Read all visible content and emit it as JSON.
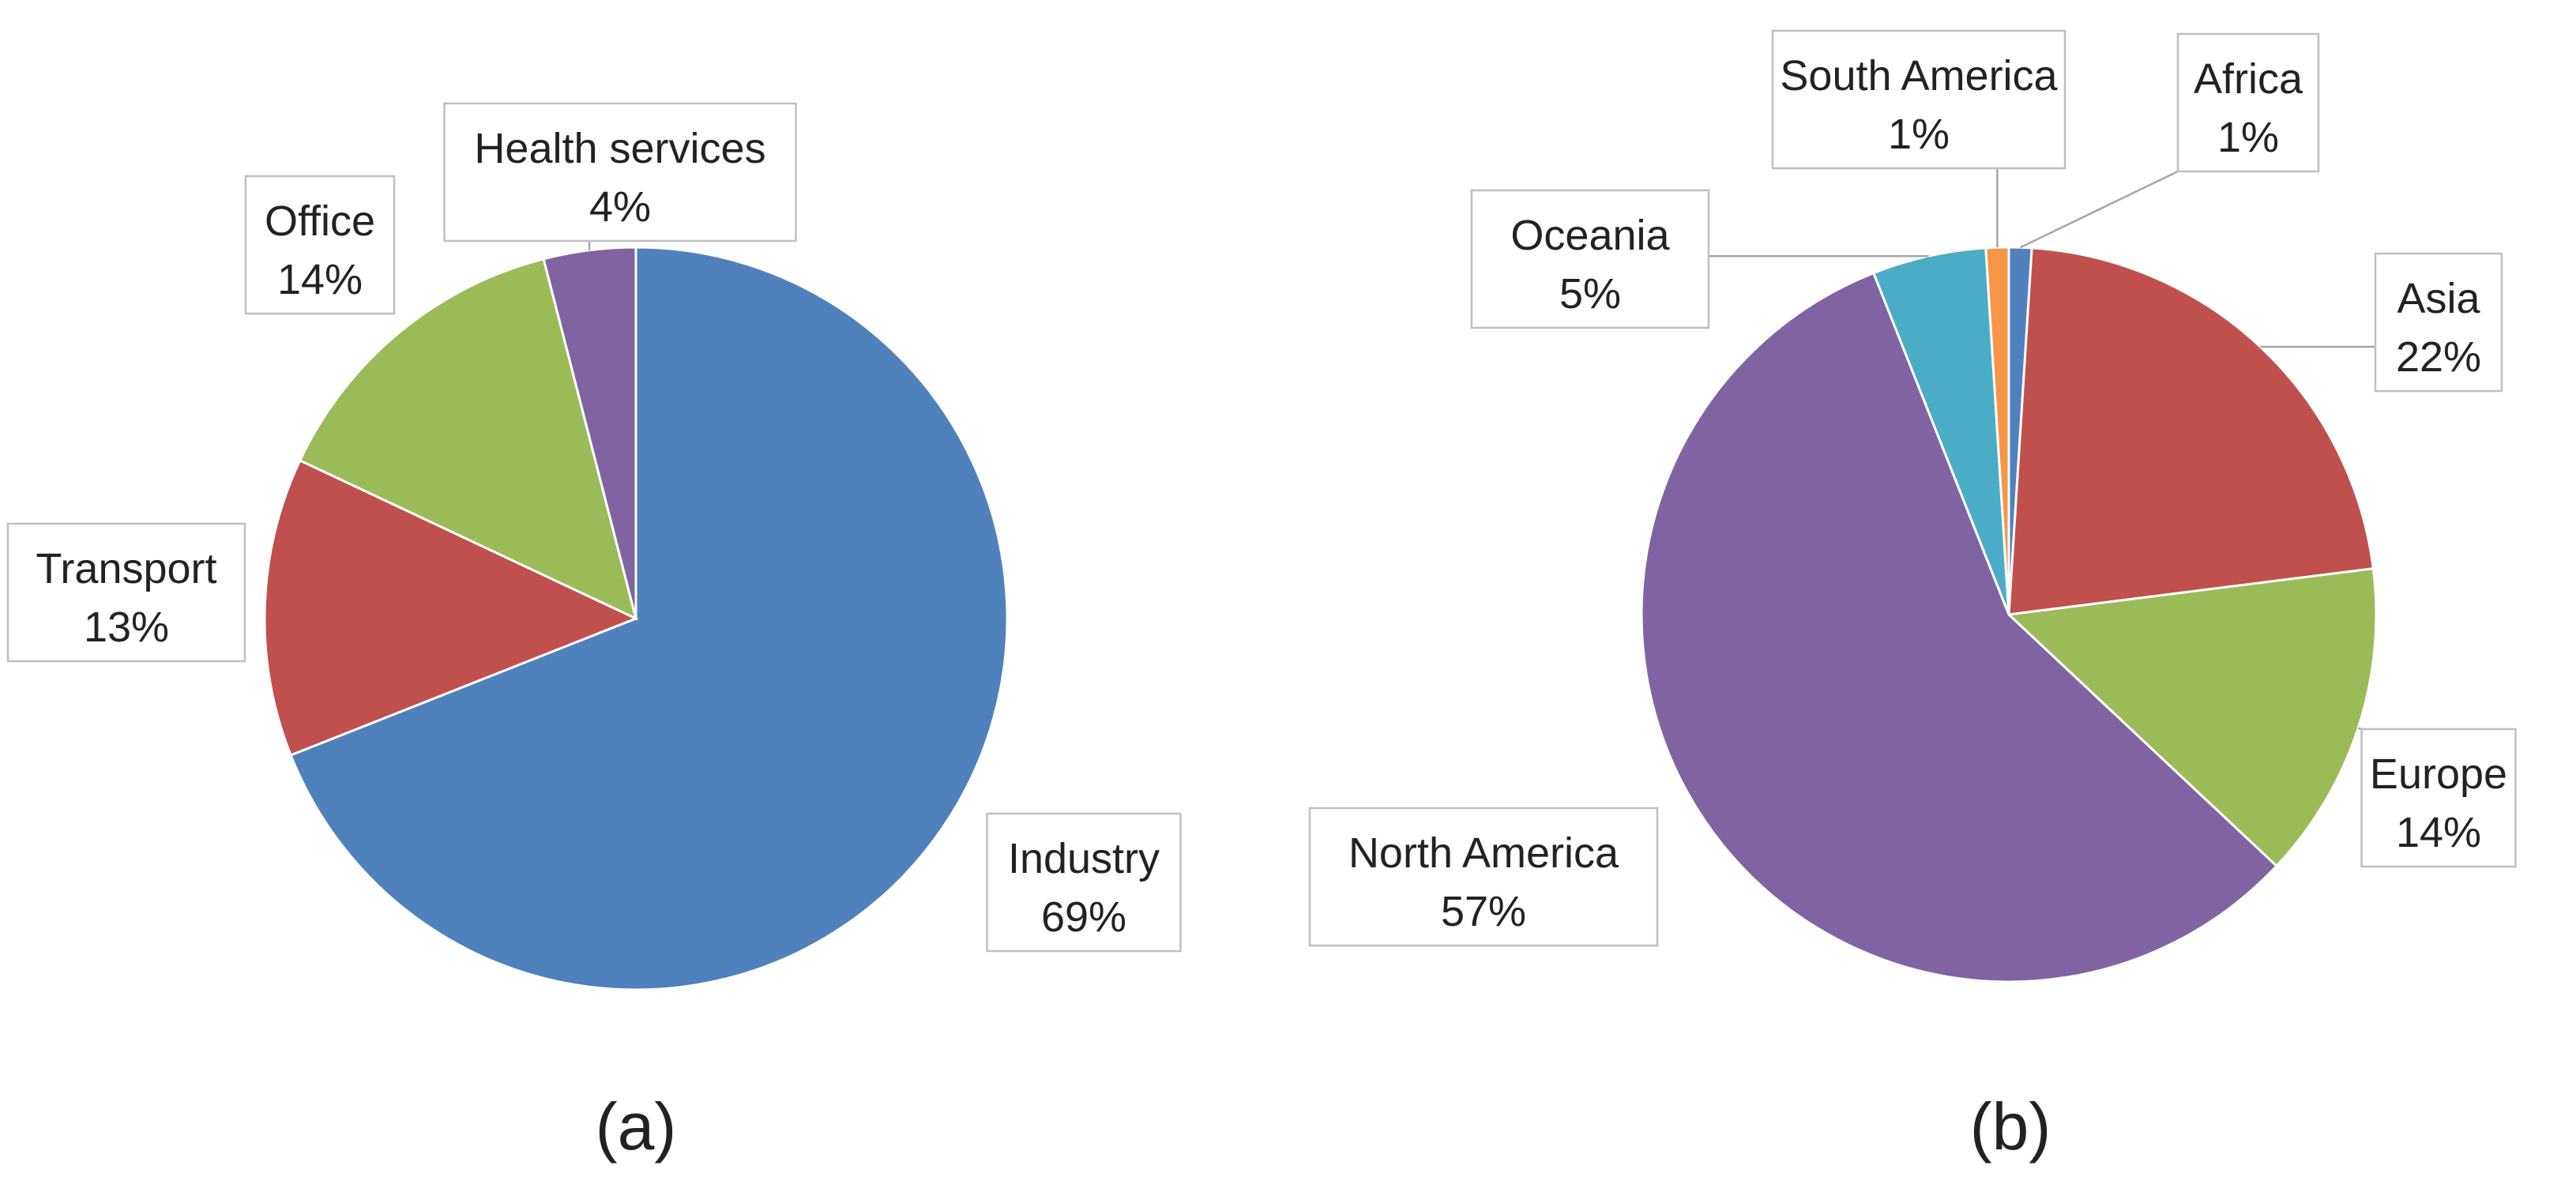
{
  "chart_data": [
    {
      "type": "pie",
      "caption": "(a)",
      "start_angle": 0,
      "direction": "clockwise",
      "slices": [
        {
          "label": "Industry",
          "value": 69,
          "pct": "69%",
          "color": "#4f81bd"
        },
        {
          "label": "Transport",
          "value": 13,
          "pct": "13%",
          "color": "#c0504d"
        },
        {
          "label": "Office",
          "value": 14,
          "pct": "14%",
          "color": "#9bbb59"
        },
        {
          "label": "Health services",
          "value": 4,
          "pct": "4%",
          "color": "#8064a2"
        }
      ]
    },
    {
      "type": "pie",
      "caption": "(b)",
      "start_angle": 0,
      "direction": "clockwise",
      "slices": [
        {
          "label": "Africa",
          "value": 1,
          "pct": "1%",
          "color": "#4f81bd"
        },
        {
          "label": "Asia",
          "value": 22,
          "pct": "22%",
          "color": "#c0504d"
        },
        {
          "label": "Europe",
          "value": 14,
          "pct": "14%",
          "color": "#9bbb59"
        },
        {
          "label": "North America",
          "value": 57,
          "pct": "57%",
          "color": "#8064a2"
        },
        {
          "label": "Oceania",
          "value": 5,
          "pct": "5%",
          "color": "#4bacc6"
        },
        {
          "label": "South America",
          "value": 1,
          "pct": "1%",
          "color": "#f79646"
        }
      ]
    }
  ]
}
